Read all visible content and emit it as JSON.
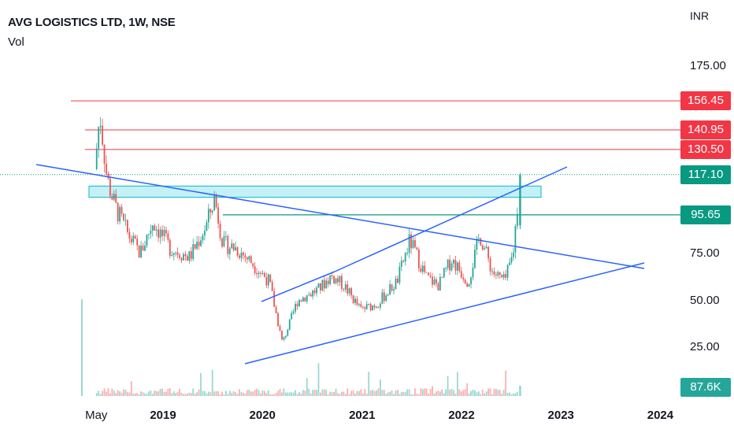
{
  "header": {
    "title": "AVG LOGISTICS LTD, 1W, NSE",
    "volume_label": "Vol"
  },
  "axis": {
    "currency": "INR"
  },
  "colors": {
    "up": "#26a69a",
    "down": "#ef5350",
    "trendline": "#2962ff",
    "resistance": "#f23645",
    "level_green": "#089981",
    "zone_fill": "#b2ebf2"
  },
  "chart_data": {
    "type": "candlestick",
    "title": "AVG LOGISTICS LTD, 1W, NSE",
    "ylabel": "INR",
    "y_ticks": [
      {
        "value": 25,
        "label": "25.00"
      },
      {
        "value": 50,
        "label": "50.00"
      },
      {
        "value": 75,
        "label": "75.00"
      },
      {
        "value": 175,
        "label": "175.00"
      }
    ],
    "x_ticks": [
      {
        "date": "2018-05-01",
        "label": "May"
      },
      {
        "date": "2019-01-01",
        "label": "2019"
      },
      {
        "date": "2020-01-01",
        "label": "2020"
      },
      {
        "date": "2021-01-01",
        "label": "2021"
      },
      {
        "date": "2022-01-01",
        "label": "2022"
      },
      {
        "date": "2023-01-01",
        "label": "2023"
      },
      {
        "date": "2024-01-01",
        "label": "2024"
      }
    ],
    "price_labels": [
      {
        "value": 156.45,
        "label": "156.45",
        "color": "#f23645"
      },
      {
        "value": 140.95,
        "label": "140.95",
        "color": "#f23645"
      },
      {
        "value": 130.5,
        "label": "130.50",
        "color": "#f23645"
      },
      {
        "value": 117.1,
        "label": "117.10",
        "color": "#089981"
      },
      {
        "value": 95.65,
        "label": "95.65",
        "color": "#089981"
      }
    ],
    "volume_label": "87.6K",
    "price_path": [
      {
        "date": "2018-05-01",
        "value": 120
      },
      {
        "date": "2018-05-20",
        "value": 150
      },
      {
        "date": "2018-06-15",
        "value": 115
      },
      {
        "date": "2018-07-15",
        "value": 100
      },
      {
        "date": "2018-09-01",
        "value": 85
      },
      {
        "date": "2018-10-15",
        "value": 75
      },
      {
        "date": "2018-12-01",
        "value": 92
      },
      {
        "date": "2019-02-01",
        "value": 78
      },
      {
        "date": "2019-04-15",
        "value": 73
      },
      {
        "date": "2019-06-15",
        "value": 90
      },
      {
        "date": "2019-07-15",
        "value": 105
      },
      {
        "date": "2019-08-15",
        "value": 80
      },
      {
        "date": "2019-10-01",
        "value": 78
      },
      {
        "date": "2019-12-01",
        "value": 70
      },
      {
        "date": "2020-02-01",
        "value": 60
      },
      {
        "date": "2020-03-20",
        "value": 27
      },
      {
        "date": "2020-05-15",
        "value": 50
      },
      {
        "date": "2020-08-01",
        "value": 56
      },
      {
        "date": "2020-09-15",
        "value": 63
      },
      {
        "date": "2020-11-01",
        "value": 58
      },
      {
        "date": "2021-01-01",
        "value": 45
      },
      {
        "date": "2021-03-01",
        "value": 48
      },
      {
        "date": "2021-05-15",
        "value": 60
      },
      {
        "date": "2021-07-01",
        "value": 82
      },
      {
        "date": "2021-09-01",
        "value": 62
      },
      {
        "date": "2021-10-15",
        "value": 58
      },
      {
        "date": "2021-12-01",
        "value": 72
      },
      {
        "date": "2022-02-01",
        "value": 60
      },
      {
        "date": "2022-03-15",
        "value": 85
      },
      {
        "date": "2022-05-01",
        "value": 65
      },
      {
        "date": "2022-06-15",
        "value": 60
      },
      {
        "date": "2022-07-15",
        "value": 75
      },
      {
        "date": "2022-08-10",
        "value": 117.1
      }
    ],
    "annotations": {
      "resistance_lines": [
        156.45,
        140.95,
        130.5
      ],
      "support_line": 95.65,
      "last_price": 117.1,
      "zone": [
        105,
        111
      ]
    },
    "grid": false
  }
}
